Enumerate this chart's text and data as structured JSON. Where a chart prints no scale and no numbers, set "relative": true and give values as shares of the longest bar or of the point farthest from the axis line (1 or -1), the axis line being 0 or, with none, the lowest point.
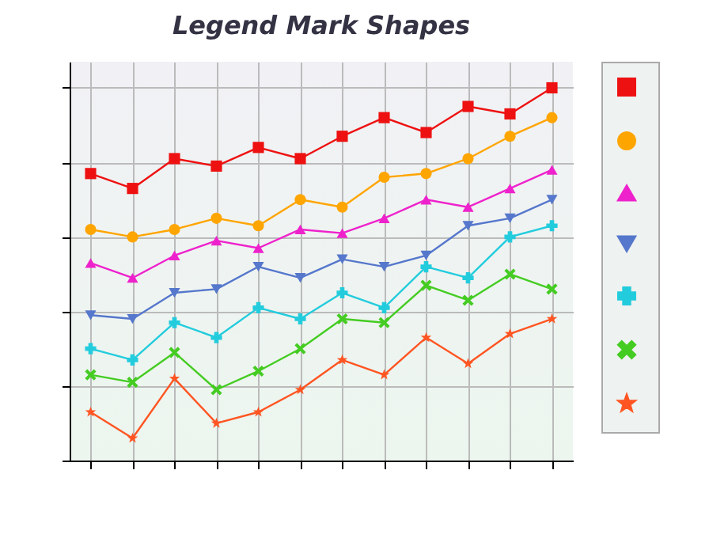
{
  "chart_data": {
    "type": "line",
    "title": "Legend Mark Shapes",
    "relative": true,
    "grid": true,
    "tick_labels": false,
    "categories": [
      null,
      null,
      null,
      null,
      null,
      null,
      null,
      null,
      null,
      null,
      null,
      null
    ],
    "series": [
      {
        "color": "#ee1111",
        "marker": "square",
        "values": [
          0.77,
          0.73,
          0.81,
          0.79,
          0.84,
          0.81,
          0.87,
          0.92,
          0.88,
          0.95,
          0.93,
          1
        ]
      },
      {
        "color": "#ffa500",
        "marker": "circle",
        "values": [
          0.62,
          0.6,
          0.62,
          0.65,
          0.63,
          0.7,
          0.68,
          0.76,
          0.77,
          0.81,
          0.87,
          0.92
        ]
      },
      {
        "color": "#ee22cc",
        "marker": "triangle",
        "values": [
          0.53,
          0.49,
          0.55,
          0.59,
          0.57,
          0.62,
          0.61,
          0.65,
          0.7,
          0.68,
          0.73,
          0.78
        ]
      },
      {
        "color": "#5577cc",
        "marker": "triangle-down",
        "values": [
          0.39,
          0.38,
          0.45,
          0.46,
          0.52,
          0.49,
          0.54,
          0.52,
          0.55,
          0.63,
          0.65,
          0.7
        ]
      },
      {
        "color": "#22ccdd",
        "marker": "cross",
        "values": [
          0.3,
          0.27,
          0.37,
          0.33,
          0.41,
          0.38,
          0.45,
          0.41,
          0.52,
          0.49,
          0.6,
          0.63
        ]
      },
      {
        "color": "#44cc22",
        "marker": "x",
        "values": [
          0.23,
          0.21,
          0.29,
          0.19,
          0.24,
          0.3,
          0.38,
          0.37,
          0.47,
          0.43,
          0.5,
          0.46
        ]
      },
      {
        "color": "#ff5522",
        "marker": "star",
        "values": [
          0.13,
          0.06,
          0.22,
          0.1,
          0.13,
          0.19,
          0.27,
          0.23,
          0.33,
          0.26,
          0.34,
          0.38
        ]
      }
    ]
  }
}
